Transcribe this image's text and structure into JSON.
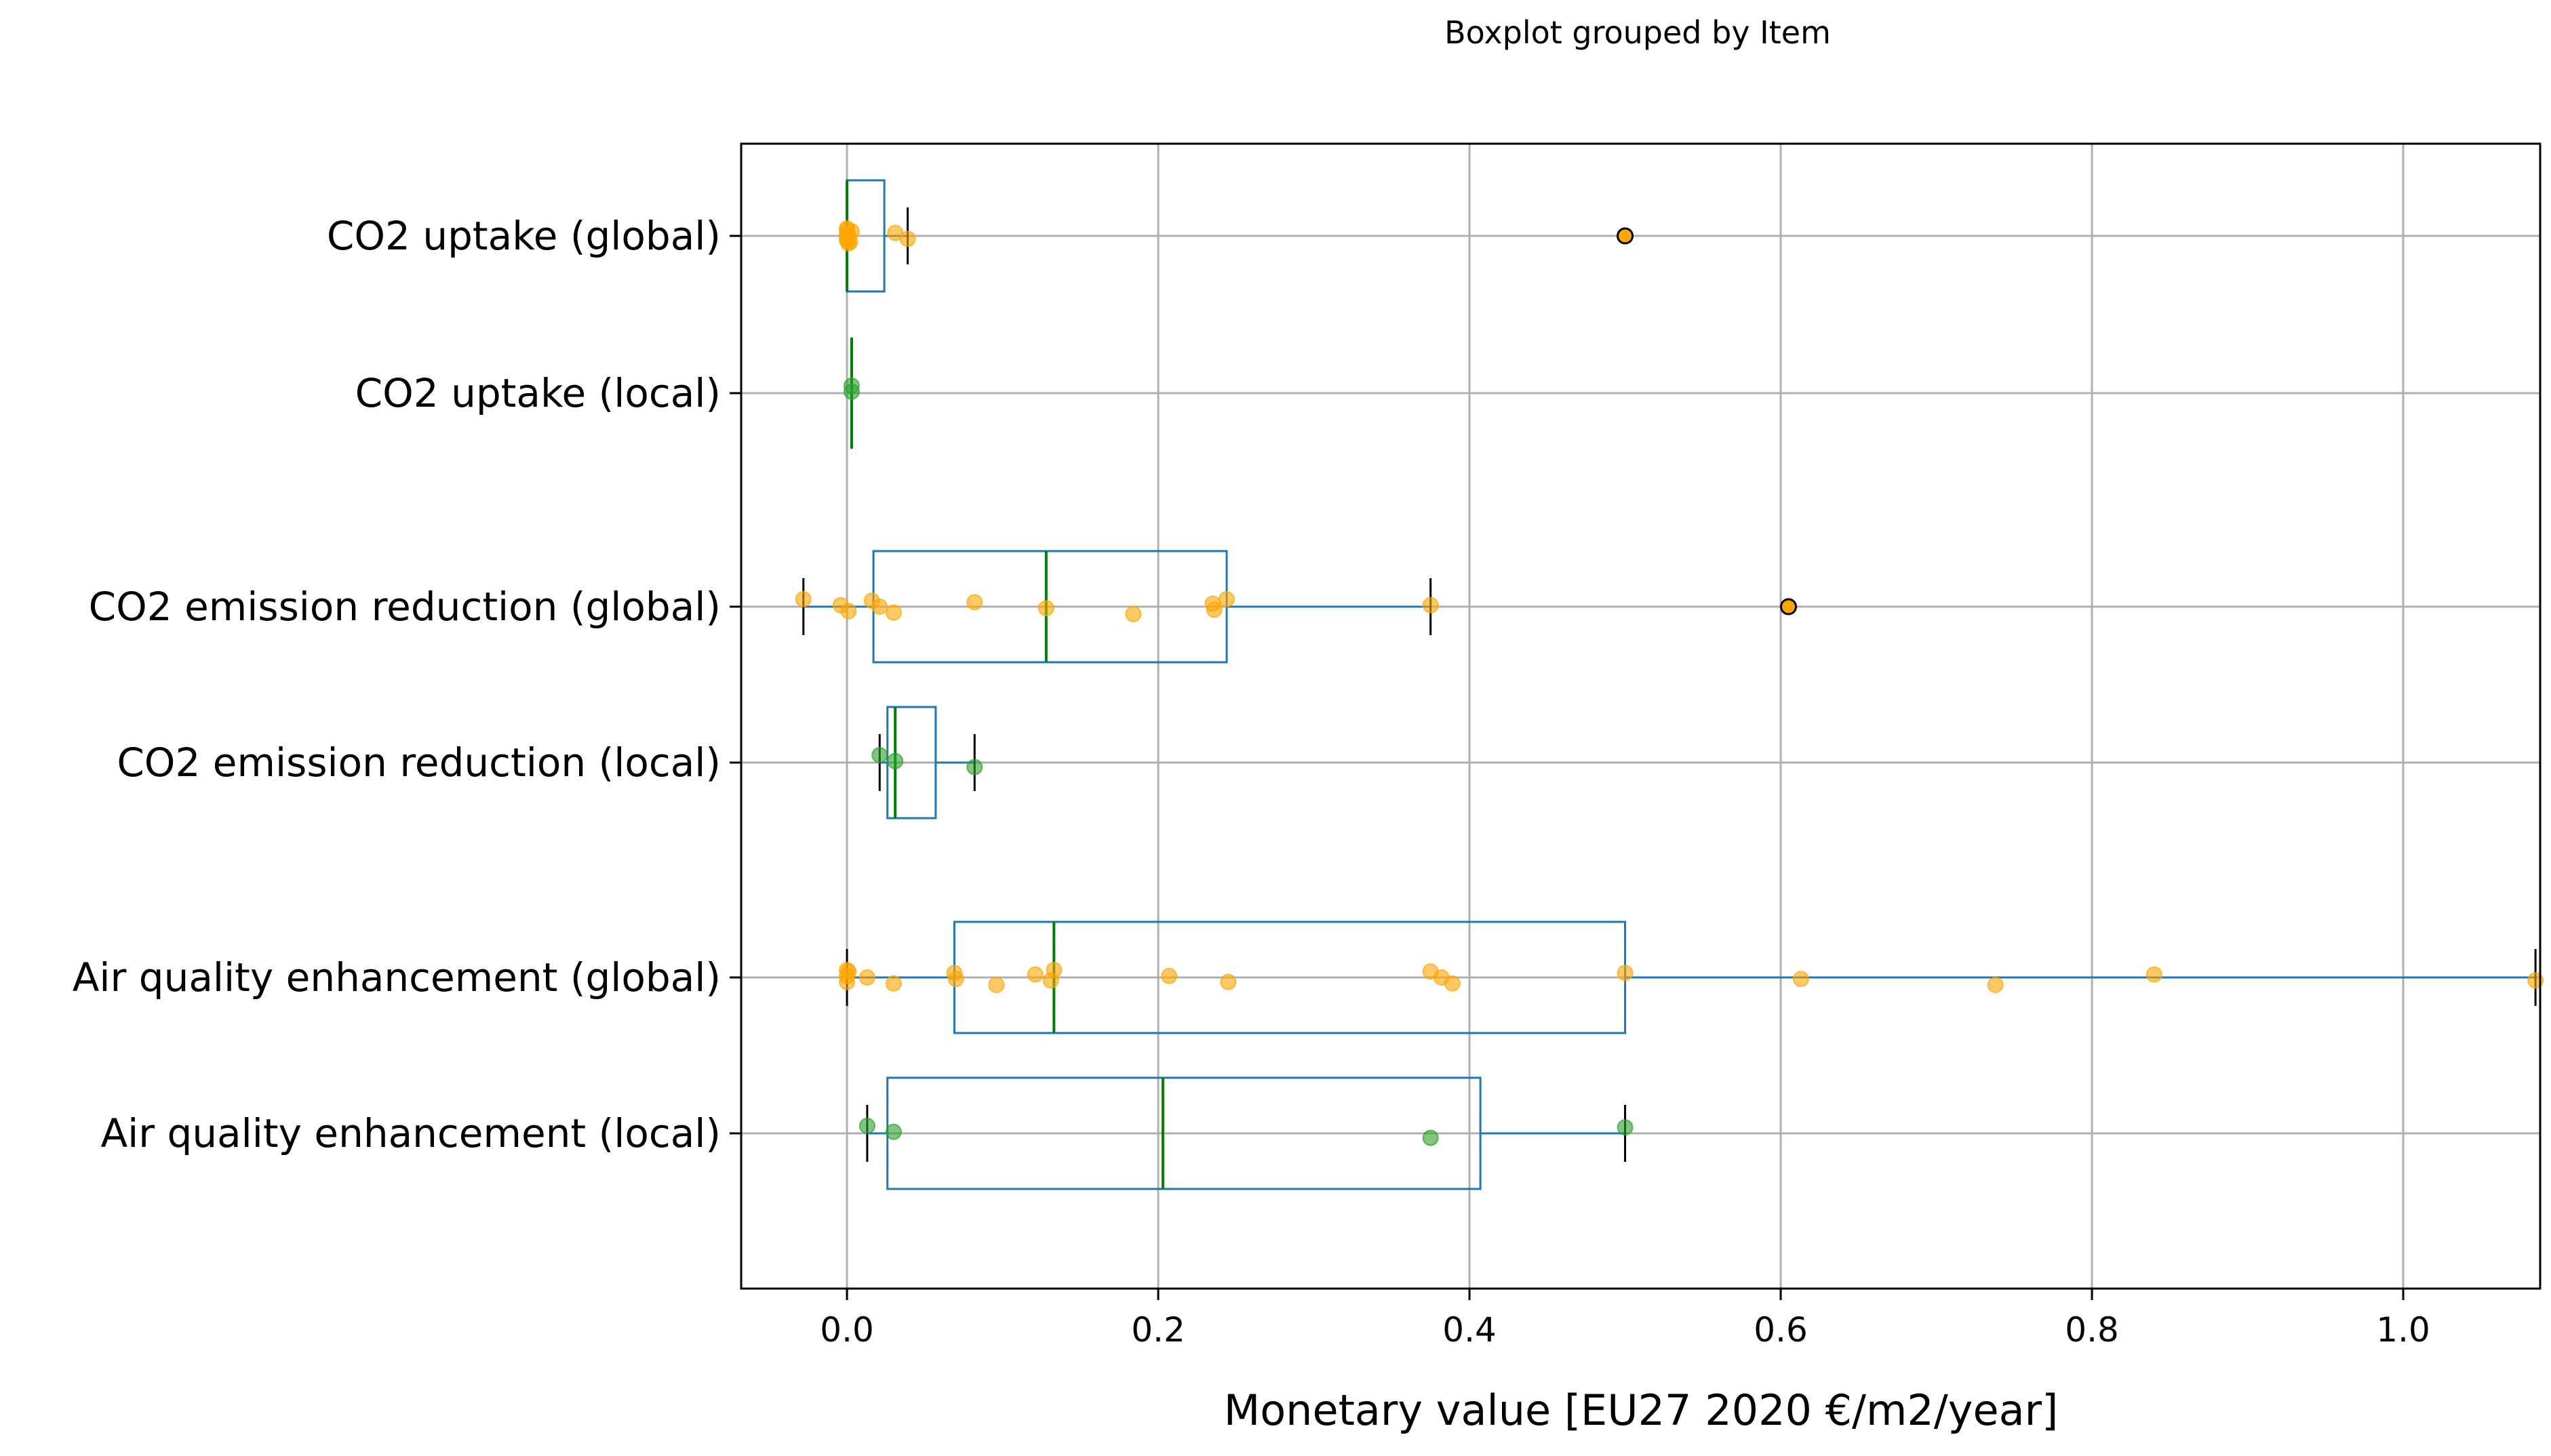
{
  "chart_data": {
    "type": "boxplot",
    "title": "Boxplot grouped by Item",
    "xlabel": "Monetary value [EU27 2020 €/m2/year]",
    "ylabel": "",
    "xlim": [
      -0.068,
      1.088
    ],
    "xticks": [
      0.0,
      0.2,
      0.4,
      0.6,
      0.8,
      1.0
    ],
    "xtick_labels": [
      "0.0",
      "0.2",
      "0.4",
      "0.6",
      "0.8",
      "1.0"
    ],
    "grid": true,
    "colors": {
      "box": "#1f77b4",
      "median": "#008000",
      "whisker_cap": "#000000",
      "global_points": "#ffa500",
      "local_points": "#2ca02c",
      "grid": "#b0b0b0"
    },
    "categories": [
      "CO2 uptake (global)",
      "CO2 uptake (local)",
      "CO2 emission reduction (global)",
      "CO2 emission reduction (local)",
      "Air quality enhancement (global)",
      "Air quality enhancement (local)"
    ],
    "boxes": [
      {
        "label": "CO2 uptake (global)",
        "q1": 0.0,
        "median": 0.0,
        "q3": 0.024,
        "whisker_low": 0.0,
        "whisker_high": 0.039,
        "outliers": [
          0.5
        ],
        "points": [
          0.0,
          0.0,
          0.0,
          0.0,
          0.001,
          0.002,
          0.003,
          0.0,
          0.001,
          0.031,
          0.039
        ]
      },
      {
        "label": "CO2 uptake (local)",
        "q1": 0.003,
        "median": 0.003,
        "q3": 0.003,
        "whisker_low": 0.003,
        "whisker_high": 0.003,
        "outliers": [],
        "points": [
          0.003,
          0.003
        ]
      },
      {
        "label": "CO2 emission reduction (global)",
        "q1": 0.017,
        "median": 0.128,
        "q3": 0.244,
        "whisker_low": -0.028,
        "whisker_high": 0.375,
        "outliers": [
          0.605
        ],
        "points": [
          -0.028,
          -0.004,
          0.001,
          0.016,
          0.021,
          0.03,
          0.082,
          0.128,
          0.184,
          0.235,
          0.236,
          0.244,
          0.375
        ]
      },
      {
        "label": "CO2 emission reduction (local)",
        "q1": 0.026,
        "median": 0.031,
        "q3": 0.057,
        "whisker_low": 0.021,
        "whisker_high": 0.082,
        "outliers": [],
        "points": [
          0.021,
          0.031,
          0.082
        ]
      },
      {
        "label": "Air quality enhancement (global)",
        "q1": 0.069,
        "median": 0.133,
        "q3": 0.5,
        "whisker_low": 0.0,
        "whisker_high": 1.085,
        "outliers": [],
        "points": [
          0.0,
          0.0,
          0.0,
          0.001,
          0.013,
          0.03,
          0.069,
          0.07,
          0.096,
          0.121,
          0.131,
          0.133,
          0.207,
          0.245,
          0.375,
          0.382,
          0.389,
          0.5,
          0.613,
          0.738,
          0.84,
          1.085
        ]
      },
      {
        "label": "Air quality enhancement (local)",
        "q1": 0.026,
        "median": 0.203,
        "q3": 0.407,
        "whisker_low": 0.013,
        "whisker_high": 0.5,
        "outliers": [],
        "points": [
          0.013,
          0.03,
          0.375,
          0.5
        ]
      }
    ]
  }
}
